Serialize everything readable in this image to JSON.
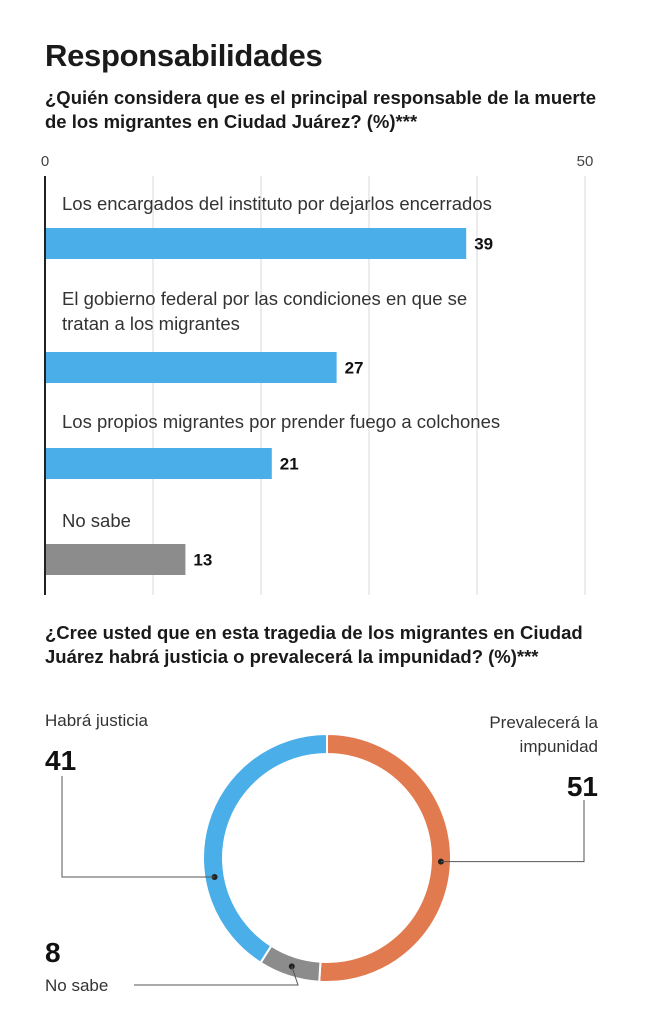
{
  "header": {
    "title": "Responsabilidades"
  },
  "colors": {
    "blue": "#4aaee8",
    "gray": "#8c8c8c",
    "orange": "#e27a50"
  },
  "chart_data": [
    {
      "type": "bar",
      "title": "¿Quién considera que es el principal responsable de la muerte de los migrantes en Ciudad Juárez? (%)***",
      "orientation": "horizontal",
      "categories": [
        "Los encargados del instituto por dejarlos encerrados",
        "El gobierno federal por las condiciones en que se tratan a los migrantes",
        "Los propios migrantes por prender fuego a colchones",
        "No sabe"
      ],
      "category_lines": [
        [
          "Los encargados del instituto por dejarlos encerrados"
        ],
        [
          "El gobierno federal por las condiciones en que se",
          "tratan a los migrantes"
        ],
        [
          "Los propios migrantes por prender fuego a colchones"
        ],
        [
          "No sabe"
        ]
      ],
      "values": [
        39,
        27,
        21,
        13
      ],
      "value_labels": [
        "39",
        "27",
        "21",
        "13"
      ],
      "bar_colors": [
        "#4aaee8",
        "#4aaee8",
        "#4aaee8",
        "#8c8c8c"
      ],
      "xlim": [
        0,
        50
      ],
      "tick_labels": [
        "0",
        "50"
      ],
      "grid": true
    },
    {
      "type": "pie",
      "variant": "donut",
      "title": "¿Cree usted que en esta tragedia de los migrantes en Ciudad Juárez habrá justicia o prevalecerá la impunidad? (%)***",
      "slices": [
        {
          "label": "Prevalecerá la impunidad",
          "label_lines": [
            "Prevalecerá la",
            "impunidad"
          ],
          "value": 51,
          "value_label": "51",
          "color": "#e27a50"
        },
        {
          "label": "No sabe",
          "label_lines": [
            "No sabe"
          ],
          "value": 8,
          "value_label": "8",
          "color": "#8c8c8c"
        },
        {
          "label": "Habrá justicia",
          "label_lines": [
            "Habrá justicia"
          ],
          "value": 41,
          "value_label": "41",
          "color": "#4aaee8"
        }
      ]
    }
  ]
}
